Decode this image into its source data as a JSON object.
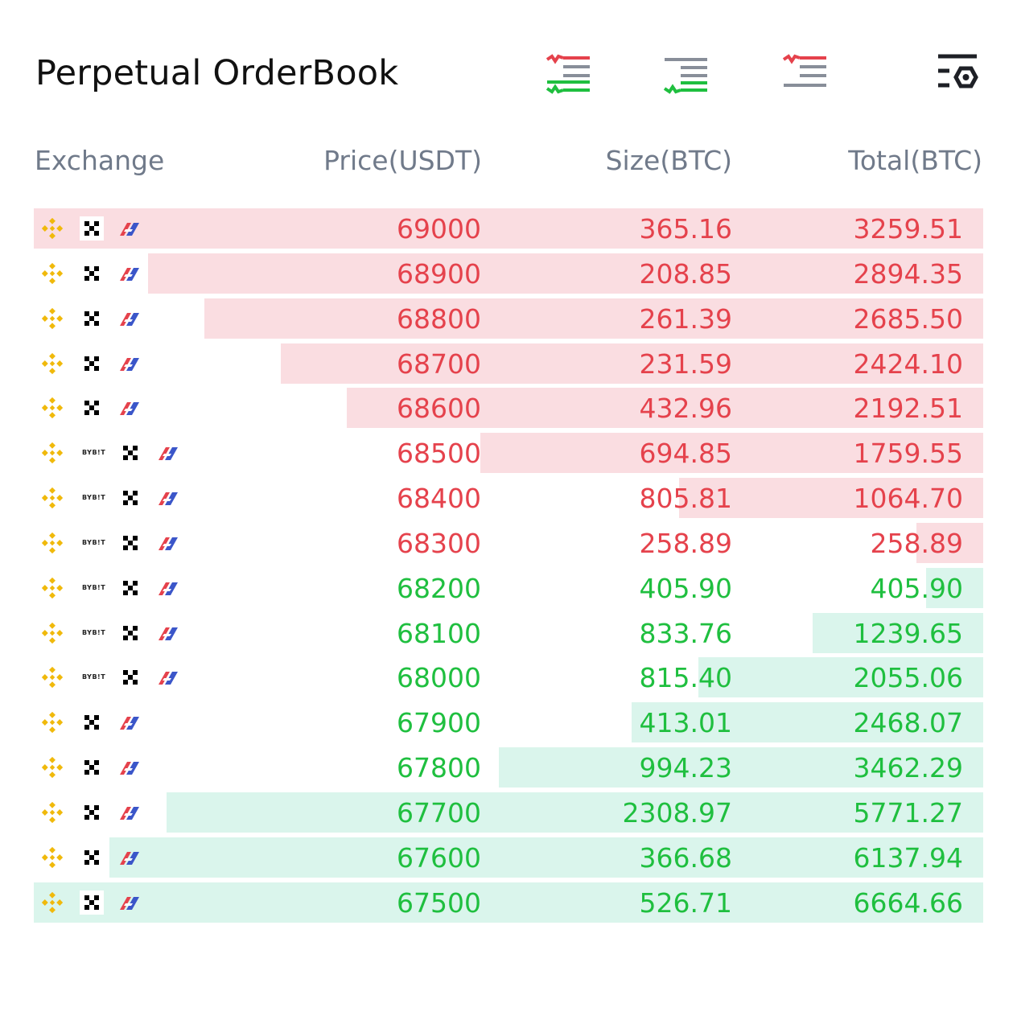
{
  "header": {
    "title": "Perpetual OrderBook"
  },
  "view_buttons": [
    {
      "icon": "orderbook-both-icon"
    },
    {
      "icon": "orderbook-bids-icon"
    },
    {
      "icon": "orderbook-asks-icon"
    },
    {
      "icon": "orderbook-settings-icon"
    }
  ],
  "columns": {
    "exchange": "Exchange",
    "price": "Price(USDT)",
    "size": "Size(BTC)",
    "total": "Total(BTC)"
  },
  "colors": {
    "ask_text": "#e5424c",
    "bid_text": "#1fbf3f",
    "ask_bar": "#fadde1",
    "bid_bar": "#daf5ec",
    "binance": "#f0b90b",
    "bitget_red": "#e5424c",
    "bitget_blue": "#3b56c9"
  },
  "bybit_text": "BYB!T",
  "max_total": 6664.66,
  "rows": [
    {
      "side": "ask",
      "price": "69000",
      "size": "365.16",
      "total": "3259.51",
      "depth": 1.0,
      "exchanges": [
        "binance-icon",
        "okx-icon",
        "bitget-icon"
      ]
    },
    {
      "side": "ask",
      "price": "68900",
      "size": "208.85",
      "total": "2894.35",
      "depth": 0.88,
      "exchanges": [
        "binance-icon",
        "okx-icon",
        "bitget-icon"
      ]
    },
    {
      "side": "ask",
      "price": "68800",
      "size": "261.39",
      "total": "2685.50",
      "depth": 0.82,
      "exchanges": [
        "binance-icon",
        "okx-icon",
        "bitget-icon"
      ]
    },
    {
      "side": "ask",
      "price": "68700",
      "size": "231.59",
      "total": "2424.10",
      "depth": 0.74,
      "exchanges": [
        "binance-icon",
        "okx-icon",
        "bitget-icon"
      ]
    },
    {
      "side": "ask",
      "price": "68600",
      "size": "432.96",
      "total": "2192.51",
      "depth": 0.67,
      "exchanges": [
        "binance-icon",
        "okx-icon",
        "bitget-icon"
      ]
    },
    {
      "side": "ask",
      "price": "68500",
      "size": "694.85",
      "total": "1759.55",
      "depth": 0.53,
      "exchanges": [
        "binance-icon",
        "bybit-icon",
        "okx-icon",
        "bitget-icon"
      ]
    },
    {
      "side": "ask",
      "price": "68400",
      "size": "805.81",
      "total": "1064.70",
      "depth": 0.32,
      "exchanges": [
        "binance-icon",
        "bybit-icon",
        "okx-icon",
        "bitget-icon"
      ]
    },
    {
      "side": "ask",
      "price": "68300",
      "size": "258.89",
      "total": "258.89",
      "depth": 0.07,
      "exchanges": [
        "binance-icon",
        "bybit-icon",
        "okx-icon",
        "bitget-icon"
      ]
    },
    {
      "side": "bid",
      "price": "68200",
      "size": "405.90",
      "total": "405.90",
      "depth": 0.06,
      "exchanges": [
        "binance-icon",
        "bybit-icon",
        "okx-icon",
        "bitget-icon"
      ]
    },
    {
      "side": "bid",
      "price": "68100",
      "size": "833.76",
      "total": "1239.65",
      "depth": 0.18,
      "exchanges": [
        "binance-icon",
        "bybit-icon",
        "okx-icon",
        "bitget-icon"
      ]
    },
    {
      "side": "bid",
      "price": "68000",
      "size": "815.40",
      "total": "2055.06",
      "depth": 0.3,
      "exchanges": [
        "binance-icon",
        "bybit-icon",
        "okx-icon",
        "bitget-icon"
      ]
    },
    {
      "side": "bid",
      "price": "67900",
      "size": "413.01",
      "total": "2468.07",
      "depth": 0.37,
      "exchanges": [
        "binance-icon",
        "okx-icon",
        "bitget-icon"
      ]
    },
    {
      "side": "bid",
      "price": "67800",
      "size": "994.23",
      "total": "3462.29",
      "depth": 0.51,
      "exchanges": [
        "binance-icon",
        "okx-icon",
        "bitget-icon"
      ]
    },
    {
      "side": "bid",
      "price": "67700",
      "size": "2308.97",
      "total": "5771.27",
      "depth": 0.86,
      "exchanges": [
        "binance-icon",
        "okx-icon",
        "bitget-icon"
      ]
    },
    {
      "side": "bid",
      "price": "67600",
      "size": "366.68",
      "total": "6137.94",
      "depth": 0.92,
      "exchanges": [
        "binance-icon",
        "okx-icon",
        "bitget-icon"
      ]
    },
    {
      "side": "bid",
      "price": "67500",
      "size": "526.71",
      "total": "6664.66",
      "depth": 1.0,
      "exchanges": [
        "binance-icon",
        "okx-icon",
        "bitget-icon"
      ]
    }
  ]
}
